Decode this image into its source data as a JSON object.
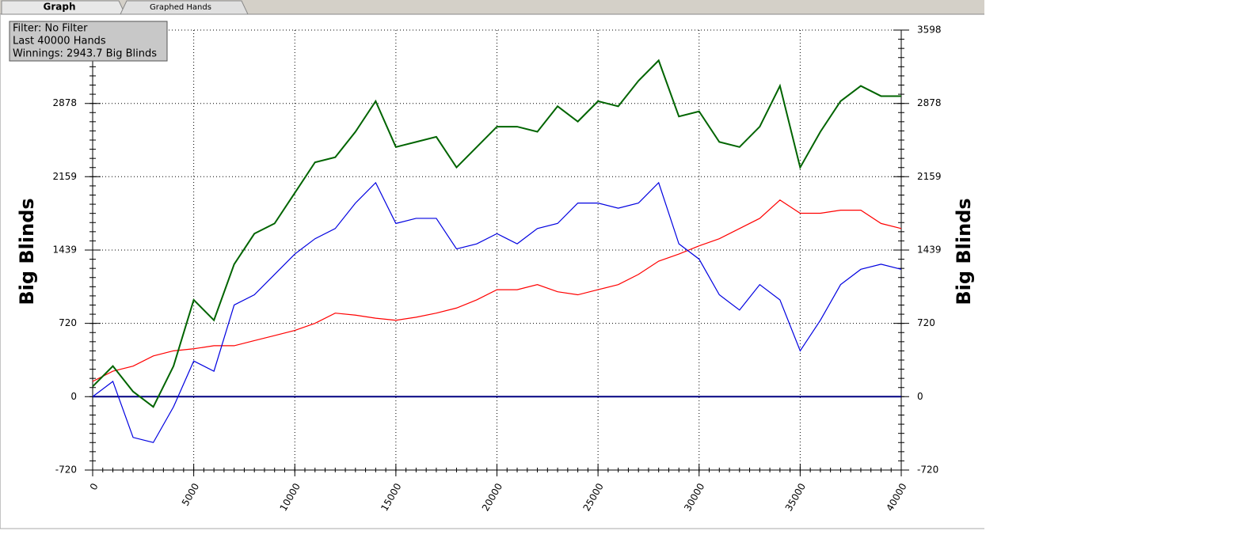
{
  "tabs": [
    "Graph",
    "Graphed Hands"
  ],
  "info": [
    "Filter: No Filter",
    "Last  40000 Hands",
    "Winnings: 2943.7 Big Blinds"
  ],
  "chart_data": {
    "type": "line",
    "y_label": "Big Blinds",
    "y2_label": "Big Blinds",
    "x": [
      0,
      1000,
      2000,
      3000,
      4000,
      5000,
      6000,
      7000,
      8000,
      9000,
      10000,
      11000,
      12000,
      13000,
      14000,
      15000,
      16000,
      17000,
      18000,
      19000,
      20000,
      21000,
      22000,
      23000,
      24000,
      25000,
      26000,
      27000,
      28000,
      29000,
      30000,
      31000,
      32000,
      33000,
      34000,
      35000,
      36000,
      37000,
      38000,
      39000,
      40000
    ],
    "series": [
      {
        "color": "#006400",
        "values": [
          100,
          300,
          50,
          -100,
          300,
          950,
          750,
          1300,
          1600,
          1700,
          2000,
          2300,
          2350,
          2600,
          2900,
          2450,
          2500,
          2550,
          2250,
          2450,
          2650,
          2650,
          2600,
          2850,
          2700,
          2900,
          2850,
          3100,
          3300,
          2750,
          2800,
          2500,
          2450,
          2650,
          3050,
          2250,
          2600,
          2900,
          3050,
          2950,
          2950
        ]
      },
      {
        "color": "#0000e0",
        "values": [
          0,
          150,
          -400,
          -450,
          -100,
          350,
          250,
          900,
          1000,
          1200,
          1400,
          1550,
          1650,
          1900,
          2100,
          1700,
          1750,
          1750,
          1450,
          1500,
          1600,
          1500,
          1650,
          1700,
          1900,
          1900,
          1850,
          1900,
          2100,
          1500,
          1350,
          1000,
          850,
          1100,
          950,
          450,
          750,
          1100,
          1250,
          1300,
          1250
        ]
      },
      {
        "color": "#ff0000",
        "values": [
          150,
          250,
          300,
          400,
          450,
          470,
          500,
          500,
          550,
          600,
          650,
          720,
          820,
          800,
          770,
          750,
          780,
          820,
          870,
          950,
          1050,
          1050,
          1100,
          1030,
          1000,
          1050,
          1100,
          1200,
          1330,
          1400,
          1480,
          1550,
          1650,
          1750,
          1930,
          1800,
          1800,
          1830,
          1830,
          1700,
          1650
        ]
      }
    ],
    "xlim": [
      0,
      40000
    ],
    "xticks": [
      0,
      5000,
      10000,
      15000,
      20000,
      25000,
      30000,
      35000,
      40000
    ],
    "ylim": [
      -720,
      3598
    ],
    "yticks": [
      -720,
      0,
      720,
      1439,
      2159,
      2878,
      3598
    ],
    "grid": true
  }
}
